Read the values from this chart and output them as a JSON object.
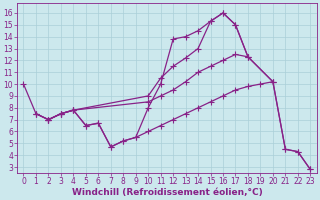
{
  "background_color": "#cce8ed",
  "grid_color": "#aacfd8",
  "line_color": "#882288",
  "marker": "+",
  "markersize": 4,
  "linewidth": 0.9,
  "xlabel": "Windchill (Refroidissement éolien,°C)",
  "xlabel_fontsize": 6.5,
  "tick_fontsize": 5.5,
  "xlim": [
    -0.5,
    23.5
  ],
  "ylim": [
    2.5,
    16.8
  ],
  "xticks": [
    0,
    1,
    2,
    3,
    4,
    5,
    6,
    7,
    8,
    9,
    10,
    11,
    12,
    13,
    14,
    15,
    16,
    17,
    18,
    19,
    20,
    21,
    22,
    23
  ],
  "yticks": [
    3,
    4,
    5,
    6,
    7,
    8,
    9,
    10,
    11,
    12,
    13,
    14,
    15,
    16
  ],
  "curves": [
    {
      "x": [
        0,
        1,
        2,
        3,
        4,
        5,
        6,
        7,
        8,
        9,
        10,
        11,
        12,
        13,
        14,
        15,
        16,
        17,
        18,
        20,
        21,
        22,
        23
      ],
      "y": [
        10,
        7.5,
        7.0,
        7.5,
        7.8,
        6.5,
        6.7,
        4.7,
        5.2,
        5.5,
        8.0,
        10.0,
        13.8,
        14.0,
        14.5,
        15.3,
        16.0,
        15.0,
        12.3,
        10.2,
        4.5,
        4.3,
        2.8
      ]
    },
    {
      "x": [
        2,
        3,
        4,
        10,
        11,
        12,
        13,
        14,
        15,
        16,
        17,
        18
      ],
      "y": [
        7.0,
        7.5,
        7.8,
        9.0,
        10.5,
        11.5,
        12.2,
        13.0,
        15.3,
        16.0,
        15.0,
        12.3
      ]
    },
    {
      "x": [
        1,
        2,
        3,
        4,
        10,
        11,
        12,
        13,
        14,
        15,
        16,
        17,
        18,
        20
      ],
      "y": [
        7.5,
        7.0,
        7.5,
        7.8,
        8.5,
        9.0,
        9.5,
        10.2,
        11.0,
        11.5,
        12.0,
        12.5,
        12.3,
        10.2
      ]
    },
    {
      "x": [
        1,
        2,
        3,
        4,
        5,
        6,
        7,
        8,
        9,
        10,
        11,
        12,
        13,
        14,
        15,
        16,
        17,
        18,
        19,
        20,
        21,
        22,
        23
      ],
      "y": [
        7.5,
        7.0,
        7.5,
        7.8,
        6.5,
        6.7,
        4.7,
        5.2,
        5.5,
        6.0,
        6.5,
        7.0,
        7.5,
        8.0,
        8.5,
        9.0,
        9.5,
        9.8,
        10.0,
        10.2,
        4.5,
        4.3,
        2.8
      ]
    }
  ]
}
